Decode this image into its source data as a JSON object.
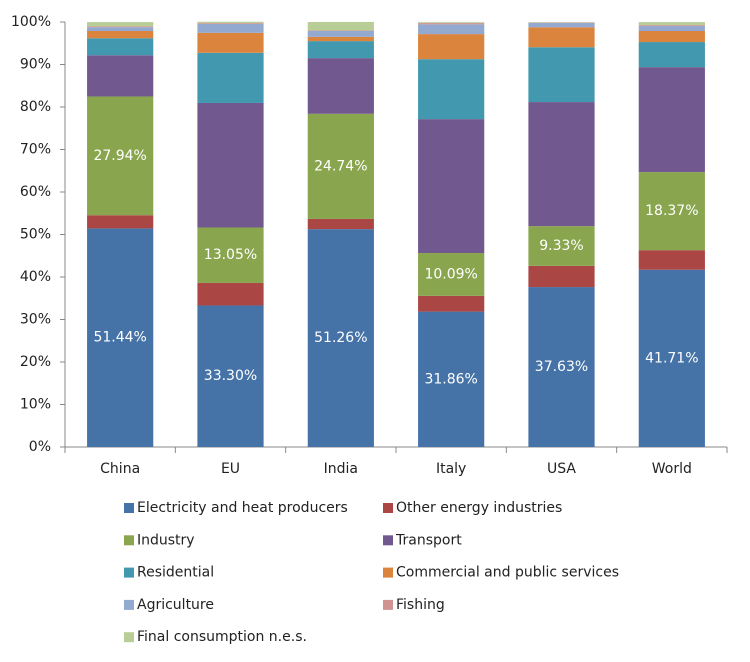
{
  "chart_data": {
    "type": "stacked_bar",
    "categories": [
      "China",
      "EU",
      "India",
      "Italy",
      "USA",
      "World"
    ],
    "series": [
      {
        "name": "Electricity and heat producers",
        "color": "#4572a7",
        "values": [
          51.44,
          33.3,
          51.26,
          31.86,
          37.63,
          41.71
        ],
        "value_labels": [
          "51.44%",
          "33.30%",
          "51.26%",
          "31.86%",
          "37.63%",
          "41.71%"
        ]
      },
      {
        "name": "Other energy industries",
        "color": "#aa4643",
        "values": [
          3.1,
          5.3,
          2.4,
          3.7,
          5.0,
          4.6
        ]
      },
      {
        "name": "Industry",
        "color": "#89a54e",
        "values": [
          27.94,
          13.05,
          24.74,
          10.09,
          9.33,
          18.37
        ],
        "value_labels": [
          "27.94%",
          "13.05%",
          "24.74%",
          "10.09%",
          "9.33%",
          "18.37%"
        ]
      },
      {
        "name": "Transport",
        "color": "#71588f",
        "values": [
          9.7,
          29.3,
          13.1,
          31.5,
          29.2,
          24.7
        ]
      },
      {
        "name": "Residential",
        "color": "#4198af",
        "values": [
          4.0,
          11.8,
          4.0,
          14.1,
          12.9,
          5.9
        ]
      },
      {
        "name": "Commercial and public services",
        "color": "#db843d",
        "values": [
          1.7,
          4.7,
          1.0,
          5.9,
          4.7,
          2.6
        ]
      },
      {
        "name": "Agriculture",
        "color": "#93a9cf",
        "values": [
          0.9,
          2.1,
          1.4,
          2.3,
          1.0,
          1.2
        ]
      },
      {
        "name": "Fishing",
        "color": "#d19392",
        "values": [
          0.2,
          0.2,
          0.1,
          0.3,
          0.1,
          0.2
        ]
      },
      {
        "name": "Final consumption n.e.s.",
        "color": "#b9cd96",
        "values": [
          1.0,
          0.3,
          2.0,
          0.2,
          0.1,
          0.7
        ]
      }
    ],
    "ylim": [
      0,
      100
    ],
    "yticks": [
      {
        "value": 0,
        "label": "0%"
      },
      {
        "value": 10,
        "label": "10%"
      },
      {
        "value": 20,
        "label": "20%"
      },
      {
        "value": 30,
        "label": "30%"
      },
      {
        "value": 40,
        "label": "40%"
      },
      {
        "value": 50,
        "label": "50%"
      },
      {
        "value": 60,
        "label": "60%"
      },
      {
        "value": 70,
        "label": "70%"
      },
      {
        "value": 80,
        "label": "80%"
      },
      {
        "value": 90,
        "label": "90%"
      },
      {
        "value": 100,
        "label": "100%"
      }
    ]
  }
}
